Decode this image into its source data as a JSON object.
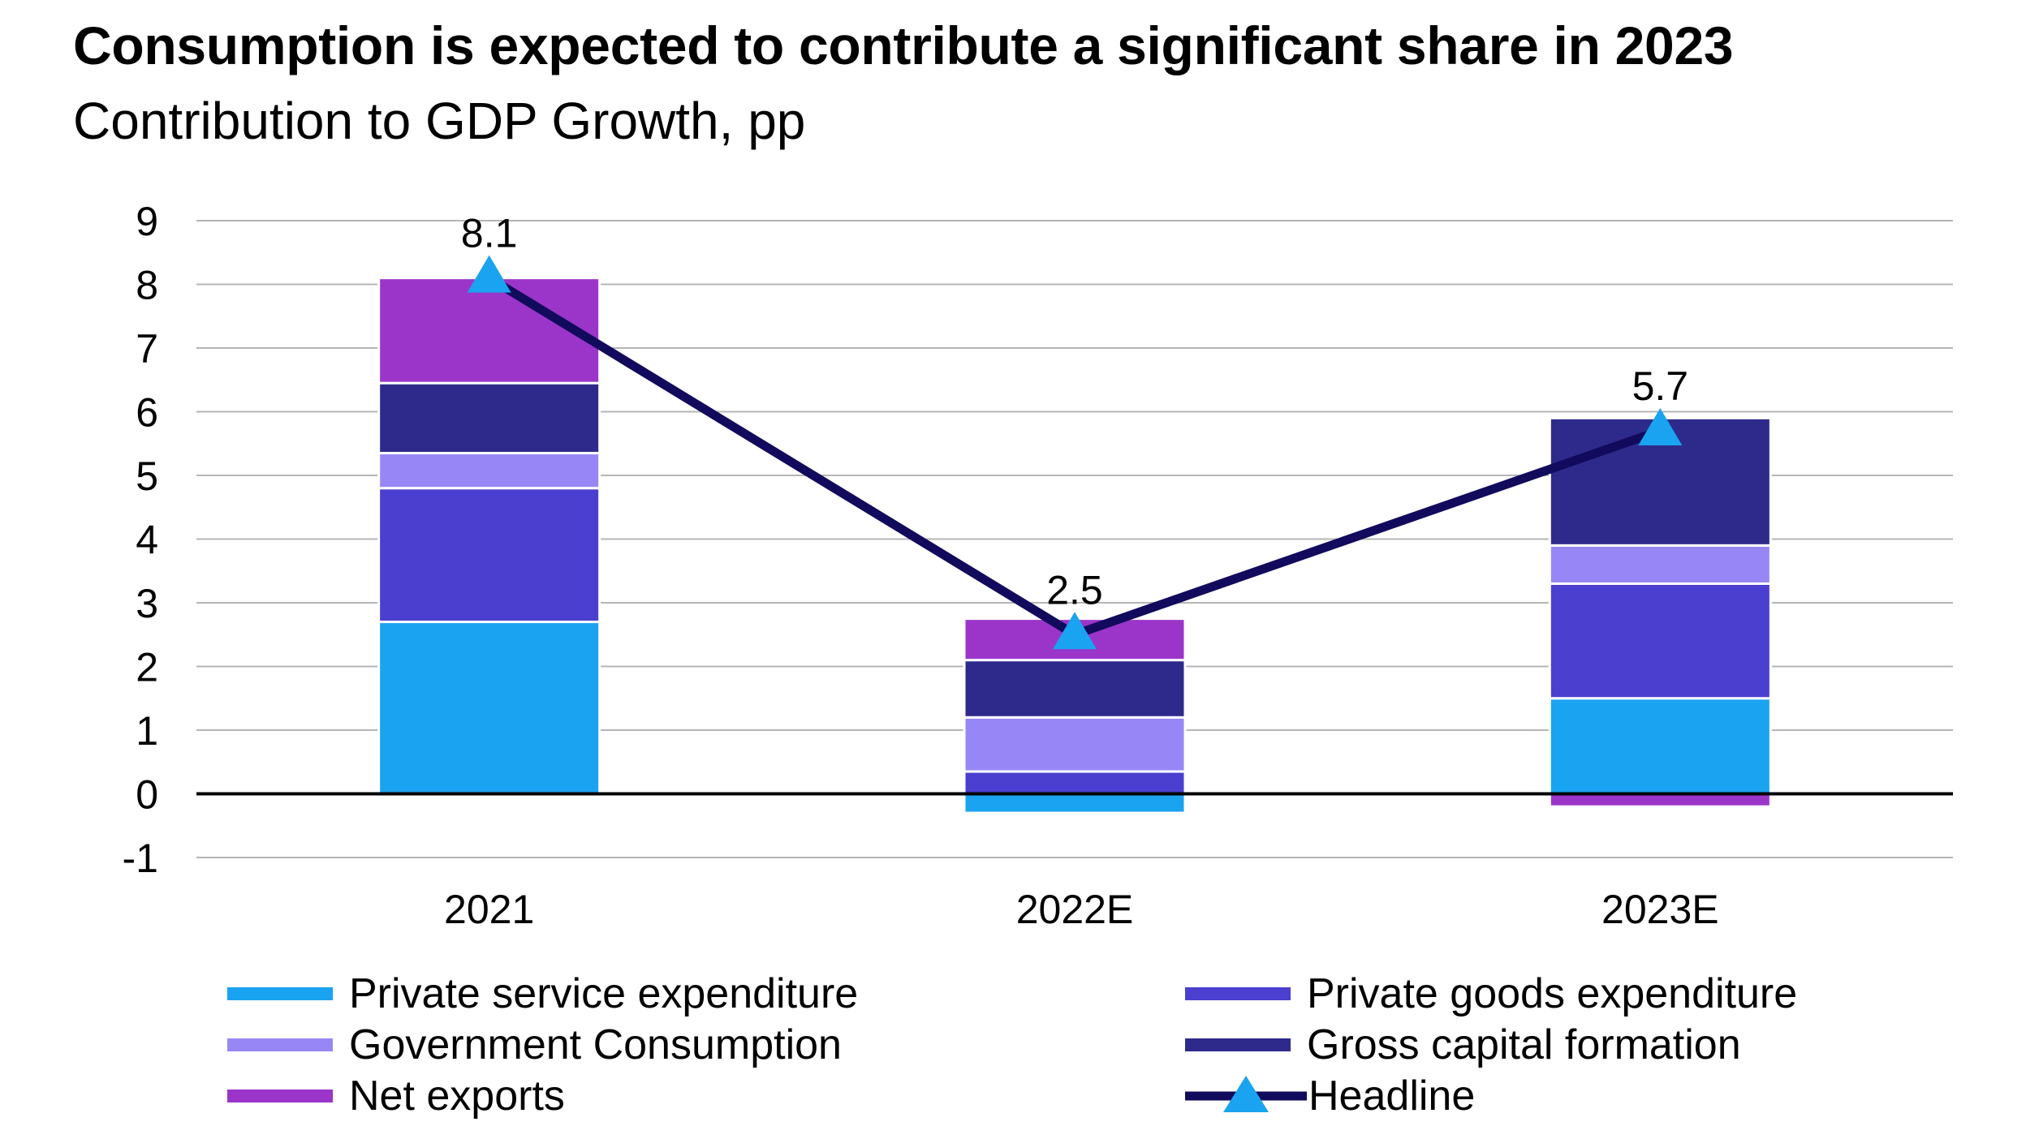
{
  "title": "Consumption is expected to contribute a significant share in 2023",
  "subtitle": "Contribution to GDP Growth, pp",
  "chart_data": {
    "type": "bar",
    "stacked": true,
    "categories": [
      "2021",
      "2022E",
      "2023E"
    ],
    "series": [
      {
        "name": "Private service expenditure",
        "color": "#1aa3f0",
        "values": [
          2.7,
          -0.3,
          1.5
        ]
      },
      {
        "name": "Private goods expenditure",
        "color": "#4a3fcf",
        "values": [
          2.1,
          0.35,
          1.8
        ]
      },
      {
        "name": "Government Consumption",
        "color": "#9787f6",
        "values": [
          0.55,
          0.85,
          0.6
        ]
      },
      {
        "name": "Gross capital formation",
        "color": "#2e2a8c",
        "values": [
          1.1,
          0.9,
          2.0
        ]
      },
      {
        "name": "Net exports",
        "color": "#9b35c9",
        "values": [
          1.65,
          0.65,
          -0.2
        ]
      }
    ],
    "line": {
      "name": "Headline",
      "color": "#120a5c",
      "marker_color": "#1aa3f0",
      "values": [
        8.1,
        2.5,
        5.7
      ]
    },
    "data_labels": [
      "8.1",
      "2.5",
      "5.7"
    ],
    "yticks": [
      "9",
      "8",
      "7",
      "6",
      "5",
      "4",
      "3",
      "2",
      "1",
      "0",
      "-1"
    ],
    "ylim": [
      -1,
      9
    ],
    "grid": true,
    "legend_position": "bottom"
  }
}
